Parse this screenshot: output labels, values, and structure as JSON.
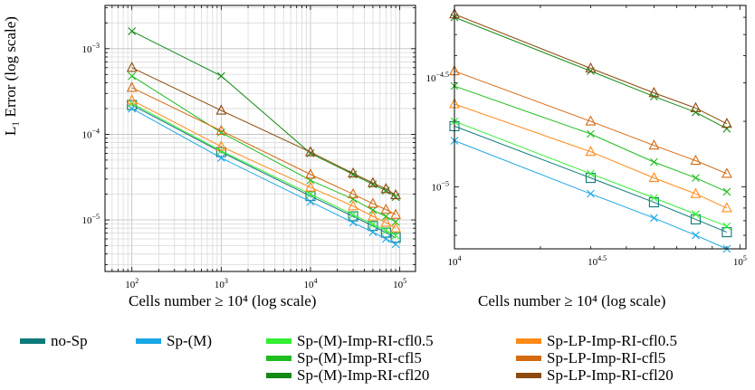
{
  "chart_data": [
    {
      "type": "line",
      "xscale": "log",
      "yscale": "log",
      "xlim": [
        50,
        150000
      ],
      "ylim": [
        2.5e-06,
        0.0032
      ],
      "grid": true,
      "xlabel": "Cells number ≥ 10⁴ (log scale)",
      "ylabel": "L₁ Error (log scale)",
      "xticks": [
        {
          "value": 100,
          "base": "10",
          "exp": "2"
        },
        {
          "value": 1000,
          "base": "10",
          "exp": "3"
        },
        {
          "value": 10000,
          "base": "10",
          "exp": "4"
        },
        {
          "value": 100000,
          "base": "10",
          "exp": "5"
        }
      ],
      "yticks": [
        {
          "value": 0.001,
          "base": "10",
          "exp": "−3"
        },
        {
          "value": 0.0001,
          "base": "10",
          "exp": "−4"
        },
        {
          "value": 1e-05,
          "base": "10",
          "exp": "−5"
        }
      ],
      "x": [
        100,
        1000,
        10000,
        30000,
        50000,
        70000,
        90000
      ],
      "series": [
        {
          "name": "no-Sp",
          "color": "#0e7a7a",
          "marker": "square",
          "values": [
            0.00022,
            6.2e-05,
            1.9e-05,
            1.1e-05,
            8.5e-06,
            7.1e-06,
            6.2e-06
          ]
        },
        {
          "name": "Sp-(M)",
          "color": "#1aa7e6",
          "marker": "x",
          "values": [
            0.0002,
            5.3e-05,
            1.63e-05,
            9.3e-06,
            7.2e-06,
            6e-06,
            5.2e-06
          ]
        },
        {
          "name": "Sp-(M)-Imp-RI-cfl0.5",
          "color": "#33ee33",
          "marker": "x",
          "values": [
            0.00023,
            6.4e-05,
            2e-05,
            1.15e-05,
            8.9e-06,
            7.5e-06,
            6.6e-06
          ]
        },
        {
          "name": "Sp-(M)-Imp-RI-cfl5",
          "color": "#1fbd1f",
          "marker": "x",
          "values": [
            0.00048,
            0.000105,
            2.9e-05,
            1.75e-05,
            1.3e-05,
            1.1e-05,
            9.5e-06
          ]
        },
        {
          "name": "Sp-(M)-Imp-RI-cfl20",
          "color": "#138a13",
          "marker": "x",
          "values": [
            0.0016,
            0.00048,
            6e-05,
            3.4e-05,
            2.6e-05,
            2.2e-05,
            1.85e-05
          ]
        },
        {
          "name": "Sp-LP-Imp-RI-cfl0.5",
          "color": "#ff8a1a",
          "marker": "triangle",
          "values": [
            0.00025,
            7.2e-05,
            2.4e-05,
            1.45e-05,
            1.1e-05,
            9.3e-06,
            8e-06
          ]
        },
        {
          "name": "Sp-LP-Imp-RI-cfl5",
          "color": "#d46a12",
          "marker": "triangle",
          "values": [
            0.00035,
            0.00011,
            3.4e-05,
            2e-05,
            1.55e-05,
            1.32e-05,
            1.15e-05
          ]
        },
        {
          "name": "Sp-LP-Imp-RI-cfl20",
          "color": "#8c4a0e",
          "marker": "triangle",
          "values": [
            0.0006,
            0.00019,
            6.2e-05,
            3.5e-05,
            2.7e-05,
            2.3e-05,
            1.95e-05
          ]
        }
      ]
    },
    {
      "type": "line",
      "xscale": "log",
      "yscale": "log",
      "xlim": [
        10000,
        105000
      ],
      "ylim": [
        5.2e-06,
        6.8e-05
      ],
      "grid": false,
      "xlabel": "Cells number ≥ 10⁴ (log scale)",
      "xticks": [
        {
          "value": 10000,
          "base": "10",
          "exp": "4"
        },
        {
          "value": 31623,
          "base": "10",
          "exp": "4.5"
        },
        {
          "value": 100000,
          "base": "10",
          "exp": "5"
        }
      ],
      "yticks": [
        {
          "value": 3.16e-05,
          "base": "10",
          "exp": "−4.5"
        },
        {
          "value": 1e-05,
          "base": "10",
          "exp": "−5"
        }
      ],
      "x": [
        10000,
        30000,
        50000,
        70000,
        90000
      ],
      "series": [
        {
          "name": "no-Sp",
          "color": "#0e7a7a",
          "marker": "square",
          "values": [
            1.9e-05,
            1.1e-05,
            8.5e-06,
            7.1e-06,
            6.2e-06
          ]
        },
        {
          "name": "Sp-(M)",
          "color": "#1aa7e6",
          "marker": "x",
          "values": [
            1.63e-05,
            9.3e-06,
            7.2e-06,
            6e-06,
            5.2e-06
          ]
        },
        {
          "name": "Sp-(M)-Imp-RI-cfl0.5",
          "color": "#33ee33",
          "marker": "x",
          "values": [
            2e-05,
            1.15e-05,
            8.9e-06,
            7.5e-06,
            6.6e-06
          ]
        },
        {
          "name": "Sp-(M)-Imp-RI-cfl5",
          "color": "#1fbd1f",
          "marker": "x",
          "values": [
            2.9e-05,
            1.75e-05,
            1.3e-05,
            1.1e-05,
            9.5e-06
          ]
        },
        {
          "name": "Sp-(M)-Imp-RI-cfl20",
          "color": "#138a13",
          "marker": "x",
          "values": [
            6e-05,
            3.4e-05,
            2.6e-05,
            2.2e-05,
            1.85e-05
          ]
        },
        {
          "name": "Sp-LP-Imp-RI-cfl0.5",
          "color": "#ff8a1a",
          "marker": "triangle",
          "values": [
            2.4e-05,
            1.45e-05,
            1.1e-05,
            9.3e-06,
            8e-06
          ]
        },
        {
          "name": "Sp-LP-Imp-RI-cfl5",
          "color": "#d46a12",
          "marker": "triangle",
          "values": [
            3.4e-05,
            2e-05,
            1.55e-05,
            1.32e-05,
            1.15e-05
          ]
        },
        {
          "name": "Sp-LP-Imp-RI-cfl20",
          "color": "#8c4a0e",
          "marker": "triangle",
          "values": [
            6.2e-05,
            3.5e-05,
            2.7e-05,
            2.3e-05,
            1.95e-05
          ]
        }
      ]
    }
  ],
  "legend": {
    "placement": "bottom",
    "items": [
      {
        "label": "no-Sp",
        "color": "#0e7a7a"
      },
      {
        "label": "Sp-(M)",
        "color": "#1aa7e6"
      },
      {
        "label": "Sp-(M)-Imp-RI-cfl0.5",
        "color": "#33ee33"
      },
      {
        "label": "Sp-(M)-Imp-RI-cfl5",
        "color": "#1fbd1f"
      },
      {
        "label": "Sp-(M)-Imp-RI-cfl20",
        "color": "#138a13"
      },
      {
        "label": "Sp-LP-Imp-RI-cfl0.5",
        "color": "#ff8a1a"
      },
      {
        "label": "Sp-LP-Imp-RI-cfl5",
        "color": "#d46a12"
      },
      {
        "label": "Sp-LP-Imp-RI-cfl20",
        "color": "#8c4a0e"
      }
    ]
  }
}
